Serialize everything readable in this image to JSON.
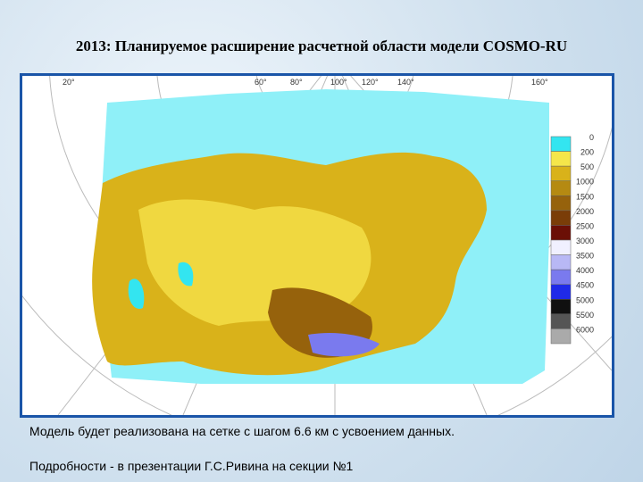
{
  "title": "2013: Планируемое расширение расчетной области модели COSMO-RU",
  "map": {
    "graticule_labels": [
      "20°",
      "60°",
      "80°",
      "100°",
      "120°",
      "140°",
      "160°"
    ],
    "legend": [
      {
        "label": "0",
        "color": "#33e5f0"
      },
      {
        "label": "200",
        "color": "#f5e64a"
      },
      {
        "label": "500",
        "color": "#d9b21a"
      },
      {
        "label": "1000",
        "color": "#b58a12"
      },
      {
        "label": "1500",
        "color": "#96620c"
      },
      {
        "label": "2000",
        "color": "#7a3d08"
      },
      {
        "label": "2500",
        "color": "#6b0f06"
      },
      {
        "label": "3000",
        "color": "#f0f0ff"
      },
      {
        "label": "3500",
        "color": "#b8b8f5"
      },
      {
        "label": "4000",
        "color": "#7a7aee"
      },
      {
        "label": "4500",
        "color": "#1f2ae8"
      },
      {
        "label": "5000",
        "color": "#101010"
      },
      {
        "label": "5500",
        "color": "#555555"
      },
      {
        "label": "6000",
        "color": "#aaaaaa"
      }
    ]
  },
  "captions": [
    "Модель будет реализована на сетке с шагом 6.6 км с усвоением данных.",
    "Подробности -  в презентации Г.С.Ривина на секции №1"
  ]
}
